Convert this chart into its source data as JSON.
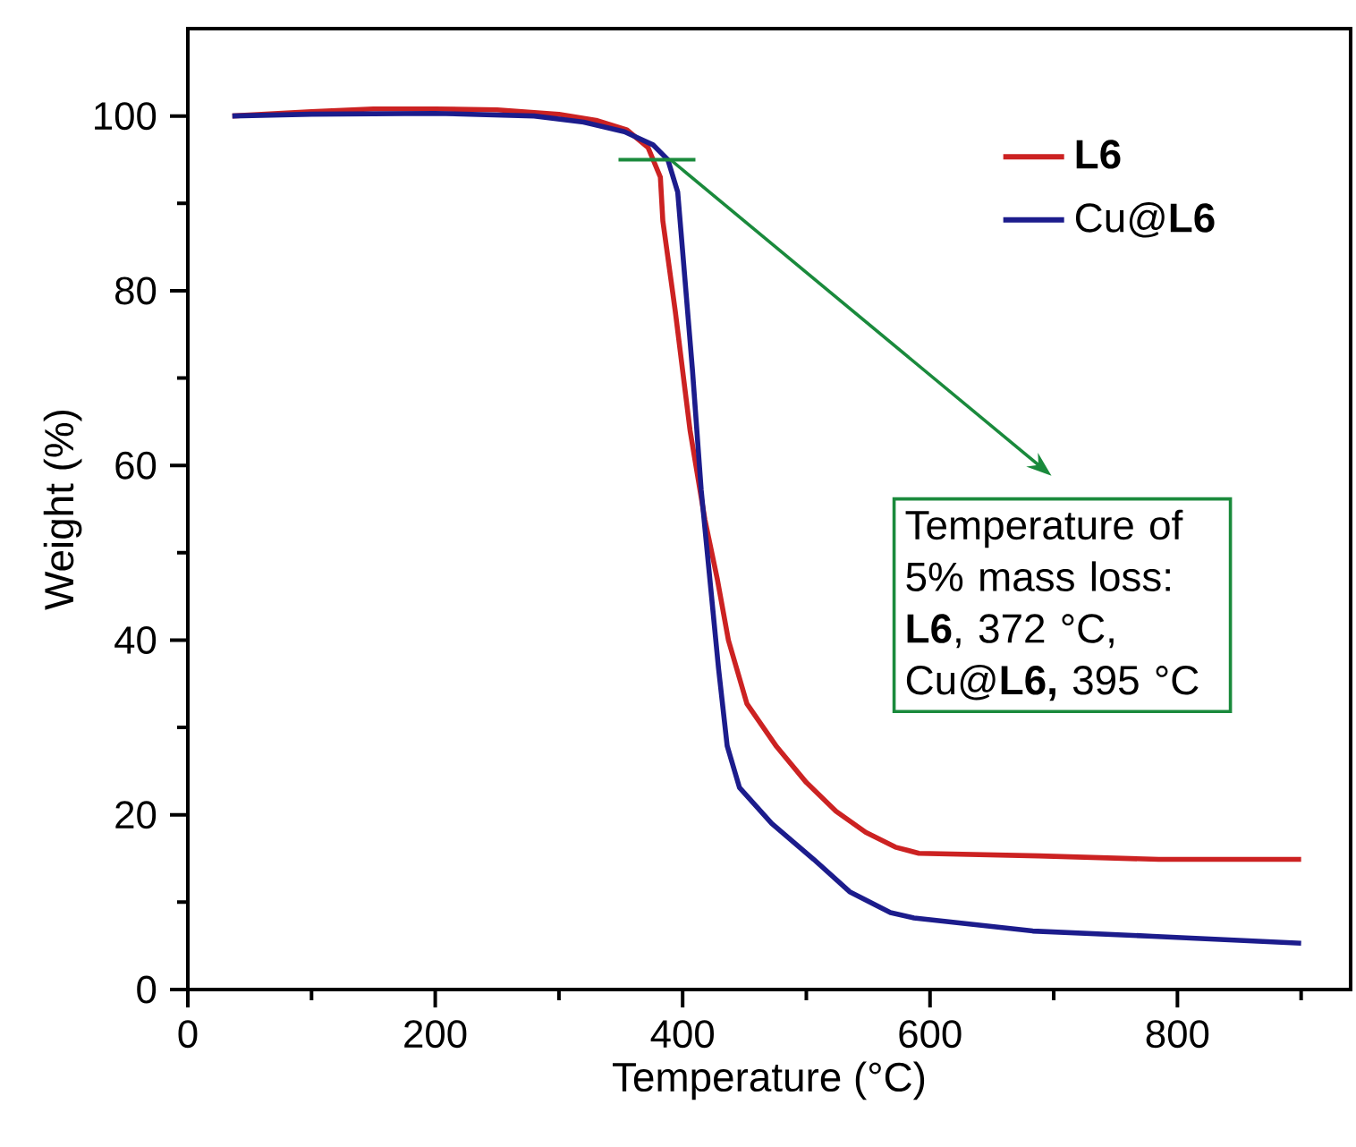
{
  "chart_data": {
    "type": "line",
    "xlabel": "Temperature (°C)",
    "ylabel": "Weight (%)",
    "xlim": [
      0,
      940
    ],
    "ylim": [
      0,
      110
    ],
    "xticks": [
      0,
      {
        "value": 100,
        "label": null
      },
      200,
      {
        "value": 300,
        "label": null
      },
      400,
      {
        "value": 500,
        "label": null
      },
      600,
      {
        "value": 700,
        "label": null
      },
      800,
      {
        "value": 900,
        "label": null
      }
    ],
    "yticks": [
      0,
      {
        "value": 10,
        "label": null
      },
      20,
      {
        "value": 30,
        "label": null
      },
      40,
      {
        "value": 50,
        "label": null
      },
      60,
      {
        "value": 70,
        "label": null
      },
      80,
      {
        "value": 90,
        "label": null
      },
      100
    ],
    "legend": "top right",
    "marker": "none",
    "line_style": "solid",
    "series": [
      {
        "name": "**L6**",
        "color": "#cc2222",
        "x": [
          36,
          100,
          150,
          200,
          250,
          300,
          330,
          355,
          372,
          382,
          384,
          394,
          406,
          418,
          428,
          437,
          452,
          476,
          500,
          524,
          548,
          572,
          591,
          688,
          785,
          900
        ],
        "values": [
          100,
          100.5,
          100.8,
          100.8,
          100.7,
          100.2,
          99.5,
          98.4,
          96.4,
          93,
          88,
          77.7,
          64,
          53.8,
          47,
          40,
          32.7,
          27.8,
          23.7,
          20.4,
          18,
          16.3,
          15.6,
          15.3,
          14.9,
          14.9
        ]
      },
      {
        "name": "Cu@**L6**",
        "color": "#1c1c8c",
        "x": [
          36,
          100,
          200,
          280,
          320,
          353,
          376,
          388,
          396,
          400,
          408,
          415,
          422,
          429,
          436,
          446,
          472,
          506,
          535,
          568,
          587,
          683,
          780,
          900
        ],
        "values": [
          100,
          100.2,
          100.3,
          100,
          99.3,
          98.2,
          96.7,
          95,
          91.3,
          84.5,
          70.8,
          57.2,
          47,
          36.8,
          27.9,
          23.1,
          19,
          14.9,
          11.2,
          8.8,
          8.2,
          6.7,
          6.1,
          5.3
        ]
      }
    ],
    "annotations": [
      "Temperature of 5% mass loss: **L6**, 372 °C, Cu@**L6,** 395 °C"
    ]
  }
}
